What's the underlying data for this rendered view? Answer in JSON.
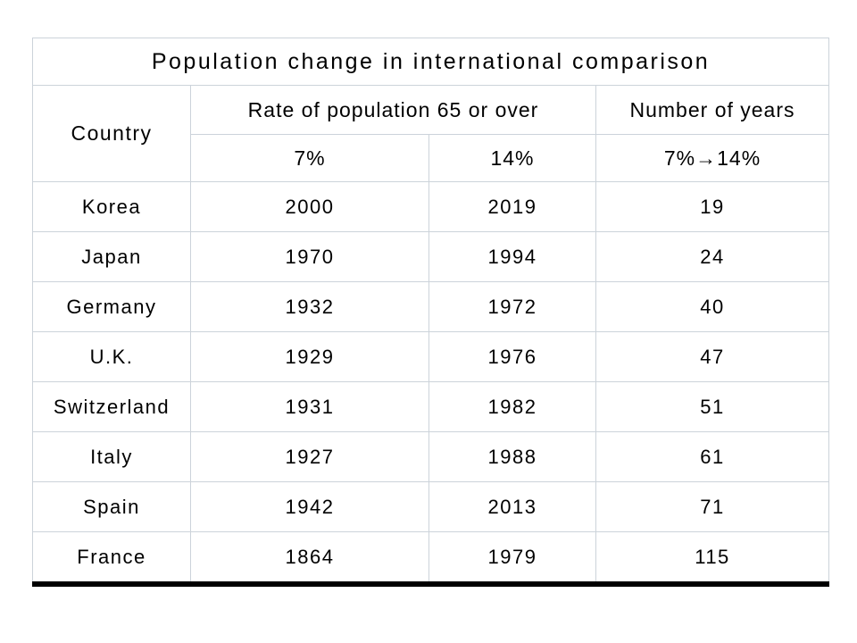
{
  "title": "Population change in international comparison",
  "table": {
    "header": {
      "country": "Country",
      "rate_group": "Rate of population 65 or over",
      "years_group": "Number of years",
      "sub_7": "7%",
      "sub_14": "14%",
      "sub_range": "7%→14%"
    },
    "rows": [
      {
        "country": "Korea",
        "p7": "2000",
        "p14": "2019",
        "years": "19"
      },
      {
        "country": "Japan",
        "p7": "1970",
        "p14": "1994",
        "years": "24"
      },
      {
        "country": "Germany",
        "p7": "1932",
        "p14": "1972",
        "years": "40"
      },
      {
        "country": "U.K.",
        "p7": "1929",
        "p14": "1976",
        "years": "47"
      },
      {
        "country": "Switzerland",
        "p7": "1931",
        "p14": "1982",
        "years": "51"
      },
      {
        "country": "Italy",
        "p7": "1927",
        "p14": "1988",
        "years": "61"
      },
      {
        "country": "Spain",
        "p7": "1942",
        "p14": "2013",
        "years": "71"
      },
      {
        "country": "France",
        "p7": "1864",
        "p14": "1979",
        "years": "115"
      }
    ]
  },
  "colors": {
    "grid_line": "#ccd3da",
    "rule_line": "#000000",
    "text": "#000000",
    "background": "#ffffff"
  }
}
